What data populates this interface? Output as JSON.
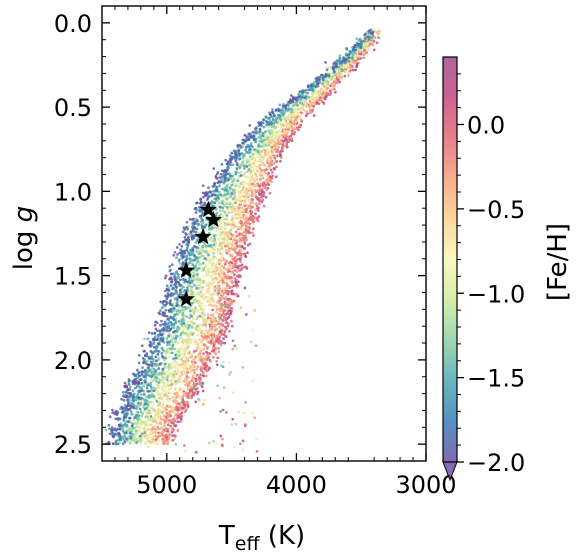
{
  "chart_data": {
    "type": "scatter",
    "title": "",
    "xlabel": {
      "main": "T",
      "sub": "eff",
      "tail": " (K)"
    },
    "ylabel": {
      "main": "log ",
      "italic": "g"
    },
    "xlim": [
      5500,
      3000
    ],
    "ylim": [
      2.6,
      -0.1
    ],
    "x_ticks": [
      {
        "value": 5000,
        "label": "5000"
      },
      {
        "value": 4000,
        "label": "4000"
      },
      {
        "value": 3000,
        "label": "3000"
      }
    ],
    "y_ticks": [
      {
        "value": 0.0,
        "label": "0.0"
      },
      {
        "value": 0.5,
        "label": "0.5"
      },
      {
        "value": 1.0,
        "label": "1.0"
      },
      {
        "value": 1.5,
        "label": "1.5"
      },
      {
        "value": 2.0,
        "label": "2.0"
      },
      {
        "value": 2.5,
        "label": "2.5"
      }
    ],
    "colorbar": {
      "label": "[Fe/H]",
      "cmap": "Spectral_r",
      "range": [
        -2.0,
        0.4
      ],
      "extend": "min",
      "ticks": [
        {
          "value": 0.0,
          "label": "0.0"
        },
        {
          "value": -0.5,
          "label": "−0.5"
        },
        {
          "value": -1.0,
          "label": "−1.0"
        },
        {
          "value": -1.5,
          "label": "−1.5"
        },
        {
          "value": -2.0,
          "label": "−2.0"
        }
      ],
      "colors": [
        "#6c50a0",
        "#3a7cb8",
        "#4fa8b2",
        "#8dd0a3",
        "#cfeb9c",
        "#f6f6b6",
        "#fcd18c",
        "#f6a07a",
        "#e46a78",
        "#c4477e",
        "#9e4a8d"
      ]
    },
    "series": [
      {
        "marker": "star",
        "color": "#000000",
        "points": [
          {
            "x": 4680,
            "y": 1.11
          },
          {
            "x": 4640,
            "y": 1.17
          },
          {
            "x": 4720,
            "y": 1.27
          },
          {
            "x": 4850,
            "y": 1.47
          },
          {
            "x": 4850,
            "y": 1.64
          }
        ]
      }
    ],
    "scatter_density": {
      "ridge": [
        {
          "y": 0.05,
          "x": 3370
        },
        {
          "y": 0.2,
          "x": 3520
        },
        {
          "y": 0.4,
          "x": 3750
        },
        {
          "y": 0.6,
          "x": 4000
        },
        {
          "y": 0.8,
          "x": 4160
        },
        {
          "y": 1.0,
          "x": 4280
        },
        {
          "y": 1.2,
          "x": 4380
        },
        {
          "y": 1.4,
          "x": 4460
        },
        {
          "y": 1.6,
          "x": 4520
        },
        {
          "y": 1.8,
          "x": 4580
        },
        {
          "y": 2.0,
          "x": 4700
        },
        {
          "y": 2.2,
          "x": 4820
        },
        {
          "y": 2.4,
          "x": 5000
        }
      ],
      "width": [
        {
          "y": 0.05,
          "w": 70
        },
        {
          "y": 0.3,
          "w": 160
        },
        {
          "y": 0.6,
          "w": 330
        },
        {
          "y": 1.0,
          "w": 470
        },
        {
          "y": 1.4,
          "w": 530
        },
        {
          "y": 1.8,
          "w": 560
        },
        {
          "y": 2.2,
          "w": 560
        },
        {
          "y": 2.45,
          "w": 480
        }
      ],
      "count": 5200
    }
  }
}
